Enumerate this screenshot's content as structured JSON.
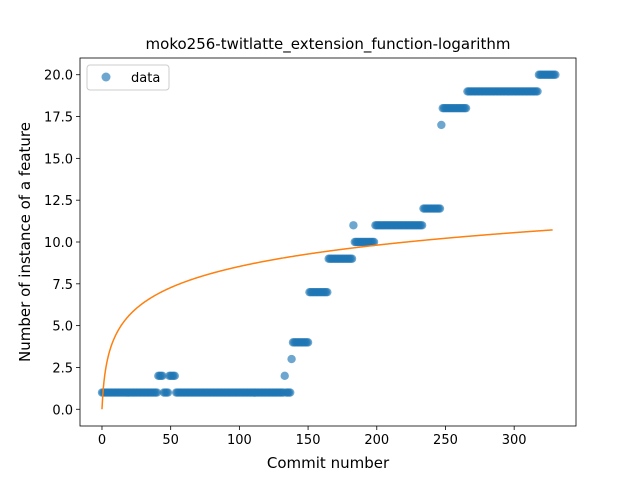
{
  "chart_data": {
    "type": "scatter",
    "title": "moko256-twitlatte_extension_function-logarithm",
    "xlabel": "Commit number",
    "ylabel": "Number of instance of a feature",
    "xlim": [
      -16,
      345
    ],
    "ylim": [
      -1,
      21
    ],
    "xticks": [
      0,
      50,
      100,
      150,
      200,
      250,
      300
    ],
    "yticks": [
      0.0,
      2.5,
      5.0,
      7.5,
      10.0,
      12.5,
      15.0,
      17.5,
      20.0
    ],
    "ytick_labels": [
      "0.0",
      "2.5",
      "5.0",
      "7.5",
      "10.0",
      "12.5",
      "15.0",
      "17.5",
      "20.0"
    ],
    "legend": {
      "position": "top-left",
      "entries": [
        "data"
      ]
    },
    "series": [
      {
        "name": "data",
        "kind": "scatter",
        "color": "#1f77b4",
        "segments": [
          {
            "x_start": 0,
            "x_end": 40,
            "y": 1
          },
          {
            "x_start": 41,
            "x_end": 44,
            "y": 2
          },
          {
            "x_start": 45,
            "x_end": 48,
            "y": 1
          },
          {
            "x_start": 49,
            "x_end": 53,
            "y": 2
          },
          {
            "x_start": 54,
            "x_end": 132,
            "y": 1
          },
          {
            "x_start": 133,
            "x_end": 133,
            "y": 2
          },
          {
            "x_start": 134,
            "x_end": 137,
            "y": 1
          },
          {
            "x_start": 138,
            "x_end": 138,
            "y": 3
          },
          {
            "x_start": 139,
            "x_end": 150,
            "y": 4
          },
          {
            "x_start": 151,
            "x_end": 164,
            "y": 7
          },
          {
            "x_start": 165,
            "x_end": 182,
            "y": 9
          },
          {
            "x_start": 183,
            "x_end": 183,
            "y": 11
          },
          {
            "x_start": 184,
            "x_end": 198,
            "y": 10
          },
          {
            "x_start": 199,
            "x_end": 233,
            "y": 11
          },
          {
            "x_start": 234,
            "x_end": 246,
            "y": 12
          },
          {
            "x_start": 247,
            "x_end": 247,
            "y": 17
          },
          {
            "x_start": 248,
            "x_end": 265,
            "y": 18
          },
          {
            "x_start": 266,
            "x_end": 317,
            "y": 19
          },
          {
            "x_start": 318,
            "x_end": 330,
            "y": 20
          }
        ]
      },
      {
        "name": "logarithm fit",
        "kind": "line",
        "color": "#ff7f0e",
        "model": "y = a * ln(x + 1)",
        "a": 1.85,
        "x_range": [
          0,
          328
        ]
      }
    ]
  }
}
